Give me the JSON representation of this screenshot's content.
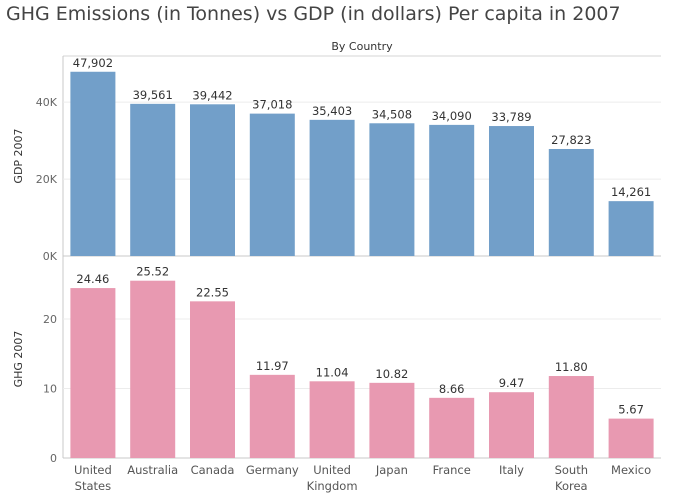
{
  "chart_data": {
    "type": "bar",
    "title": "GHG Emissions (in Tonnes) vs GDP (in dollars) Per capita in 2007",
    "subtitle": "By Country",
    "categories": [
      [
        "United",
        "States"
      ],
      [
        "Australia"
      ],
      [
        "Canada"
      ],
      [
        "Germany"
      ],
      [
        "United",
        "Kingdom"
      ],
      [
        "Japan"
      ],
      [
        "France"
      ],
      [
        "Italy"
      ],
      [
        "South",
        "Korea"
      ],
      [
        "Mexico"
      ]
    ],
    "panels": [
      {
        "ylabel": "GDP 2007",
        "color": "#729fc9",
        "ylim": [
          0,
          52000
        ],
        "ticks": [
          0,
          20000,
          40000
        ],
        "tick_labels": [
          "0K",
          "20K",
          "40K"
        ],
        "values": [
          47902,
          39561,
          39442,
          37018,
          35403,
          34508,
          34090,
          33789,
          27823,
          14261
        ],
        "value_labels": [
          "47,902",
          "39,561",
          "39,442",
          "37,018",
          "35,403",
          "34,508",
          "34,090",
          "33,789",
          "27,823",
          "14,261"
        ]
      },
      {
        "ylabel": "GHG 2007",
        "color": "#e899b1",
        "ylim": [
          0,
          28.5
        ],
        "ticks": [
          0,
          10,
          20
        ],
        "tick_labels": [
          "0",
          "10",
          "20"
        ],
        "values": [
          24.46,
          25.52,
          22.55,
          11.97,
          11.04,
          10.82,
          8.66,
          9.47,
          11.8,
          5.67
        ],
        "value_labels": [
          "24.46",
          "25.52",
          "22.55",
          "11.97",
          "11.04",
          "10.82",
          "8.66",
          "9.47",
          "11.80",
          "5.67"
        ]
      }
    ],
    "grid": true
  }
}
